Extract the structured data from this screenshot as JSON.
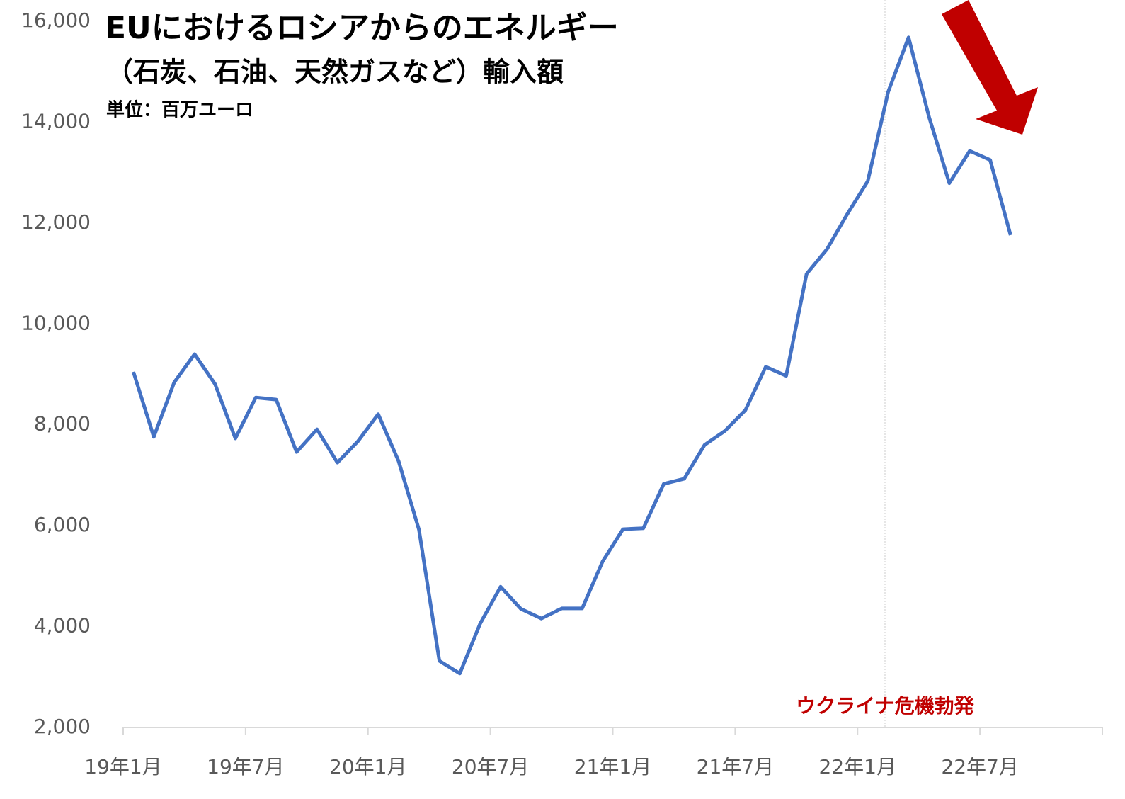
{
  "chart_data": {
    "type": "line",
    "title": "EUにおけるロシアからのエネルギー",
    "subtitle": "（石炭、石油、天然ガスなど）輸入額",
    "unit": "単位：百万ユーロ",
    "annotation": "ウクライナ危機勃発",
    "categories": [
      "19年1月",
      null,
      null,
      null,
      null,
      null,
      "19年7月",
      null,
      null,
      null,
      null,
      null,
      "20年1月",
      null,
      null,
      null,
      null,
      null,
      "20年7月",
      null,
      null,
      null,
      null,
      null,
      "21年1月",
      null,
      null,
      null,
      null,
      null,
      "21年7月",
      null,
      null,
      null,
      null,
      null,
      "22年1月",
      null,
      null,
      null,
      null,
      null,
      "22年7月",
      null,
      null,
      null,
      null,
      null
    ],
    "series": [
      {
        "name": "輸入額",
        "color": "#4472c4",
        "values": [
          9050,
          7760,
          8840,
          9400,
          8810,
          7730,
          8540,
          8500,
          7460,
          7910,
          7250,
          7670,
          8210,
          7280,
          5920,
          3320,
          3070,
          4060,
          4790,
          4350,
          4160,
          4360,
          4360,
          5290,
          5930,
          5950,
          6830,
          6930,
          7600,
          7880,
          8290,
          9150,
          8970,
          10990,
          11480,
          12180,
          12830,
          14600,
          15680,
          14110,
          12790,
          13430,
          13250,
          11760,
          null,
          null,
          null,
          null
        ]
      }
    ],
    "ylim": [
      2000,
      16000
    ],
    "yticks": [
      {
        "value": 2000,
        "label": "2,000"
      },
      {
        "value": 4000,
        "label": "4,000"
      },
      {
        "value": 6000,
        "label": "6,000"
      },
      {
        "value": 8000,
        "label": "8,000"
      },
      {
        "value": 10000,
        "label": "10,000"
      },
      {
        "value": 12000,
        "label": "12,000"
      },
      {
        "value": 14000,
        "label": "14,000"
      },
      {
        "value": 16000,
        "label": "16,000"
      }
    ],
    "grid": false
  }
}
